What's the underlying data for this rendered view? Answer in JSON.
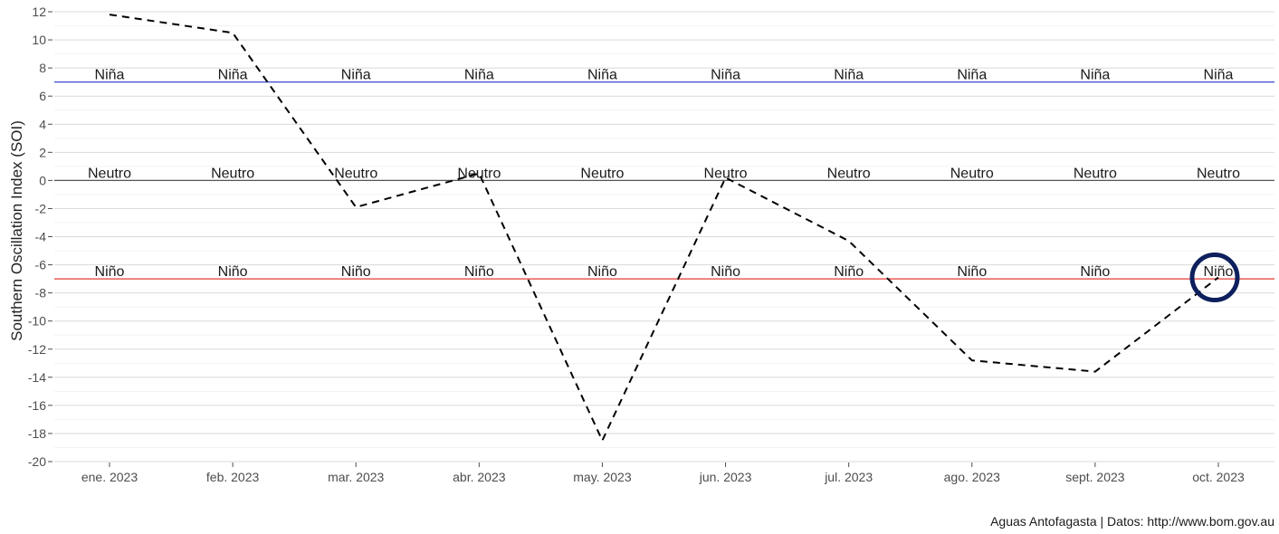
{
  "chart_data": {
    "type": "line",
    "title": "",
    "xlabel": "",
    "ylabel": "Southern Oscillation Index (SOI)",
    "categories": [
      "ene. 2023",
      "feb. 2023",
      "mar. 2023",
      "abr. 2023",
      "may. 2023",
      "jun. 2023",
      "jul. 2023",
      "ago. 2023",
      "sept. 2023",
      "oct. 2023"
    ],
    "series": [
      {
        "values": [
          11.8,
          10.5,
          -1.9,
          0.5,
          -18.5,
          0.2,
          -4.3,
          -12.8,
          -13.6,
          -6.9
        ],
        "color": "#000000",
        "line_style": "dashed"
      }
    ],
    "ylim": [
      -20,
      12
    ],
    "yticks": [
      12,
      10,
      8,
      6,
      4,
      2,
      0,
      -2,
      -4,
      -6,
      -8,
      -10,
      -12,
      -14,
      -16,
      -18,
      -20
    ],
    "grid": true,
    "reference_lines": [
      {
        "y": 7,
        "color": "#3b48cc",
        "label": "Niña"
      },
      {
        "y": 0,
        "color": "#555555",
        "label": "Neutro"
      },
      {
        "y": -7,
        "color": "#e53935",
        "label": "Niño"
      }
    ],
    "highlight": {
      "category": "oct. 2023",
      "value": -6.9,
      "color": "#0d1f5c",
      "shape": "circle"
    },
    "caption": "Aguas Antofagasta | Datos: http://www.bom.gov.au"
  }
}
